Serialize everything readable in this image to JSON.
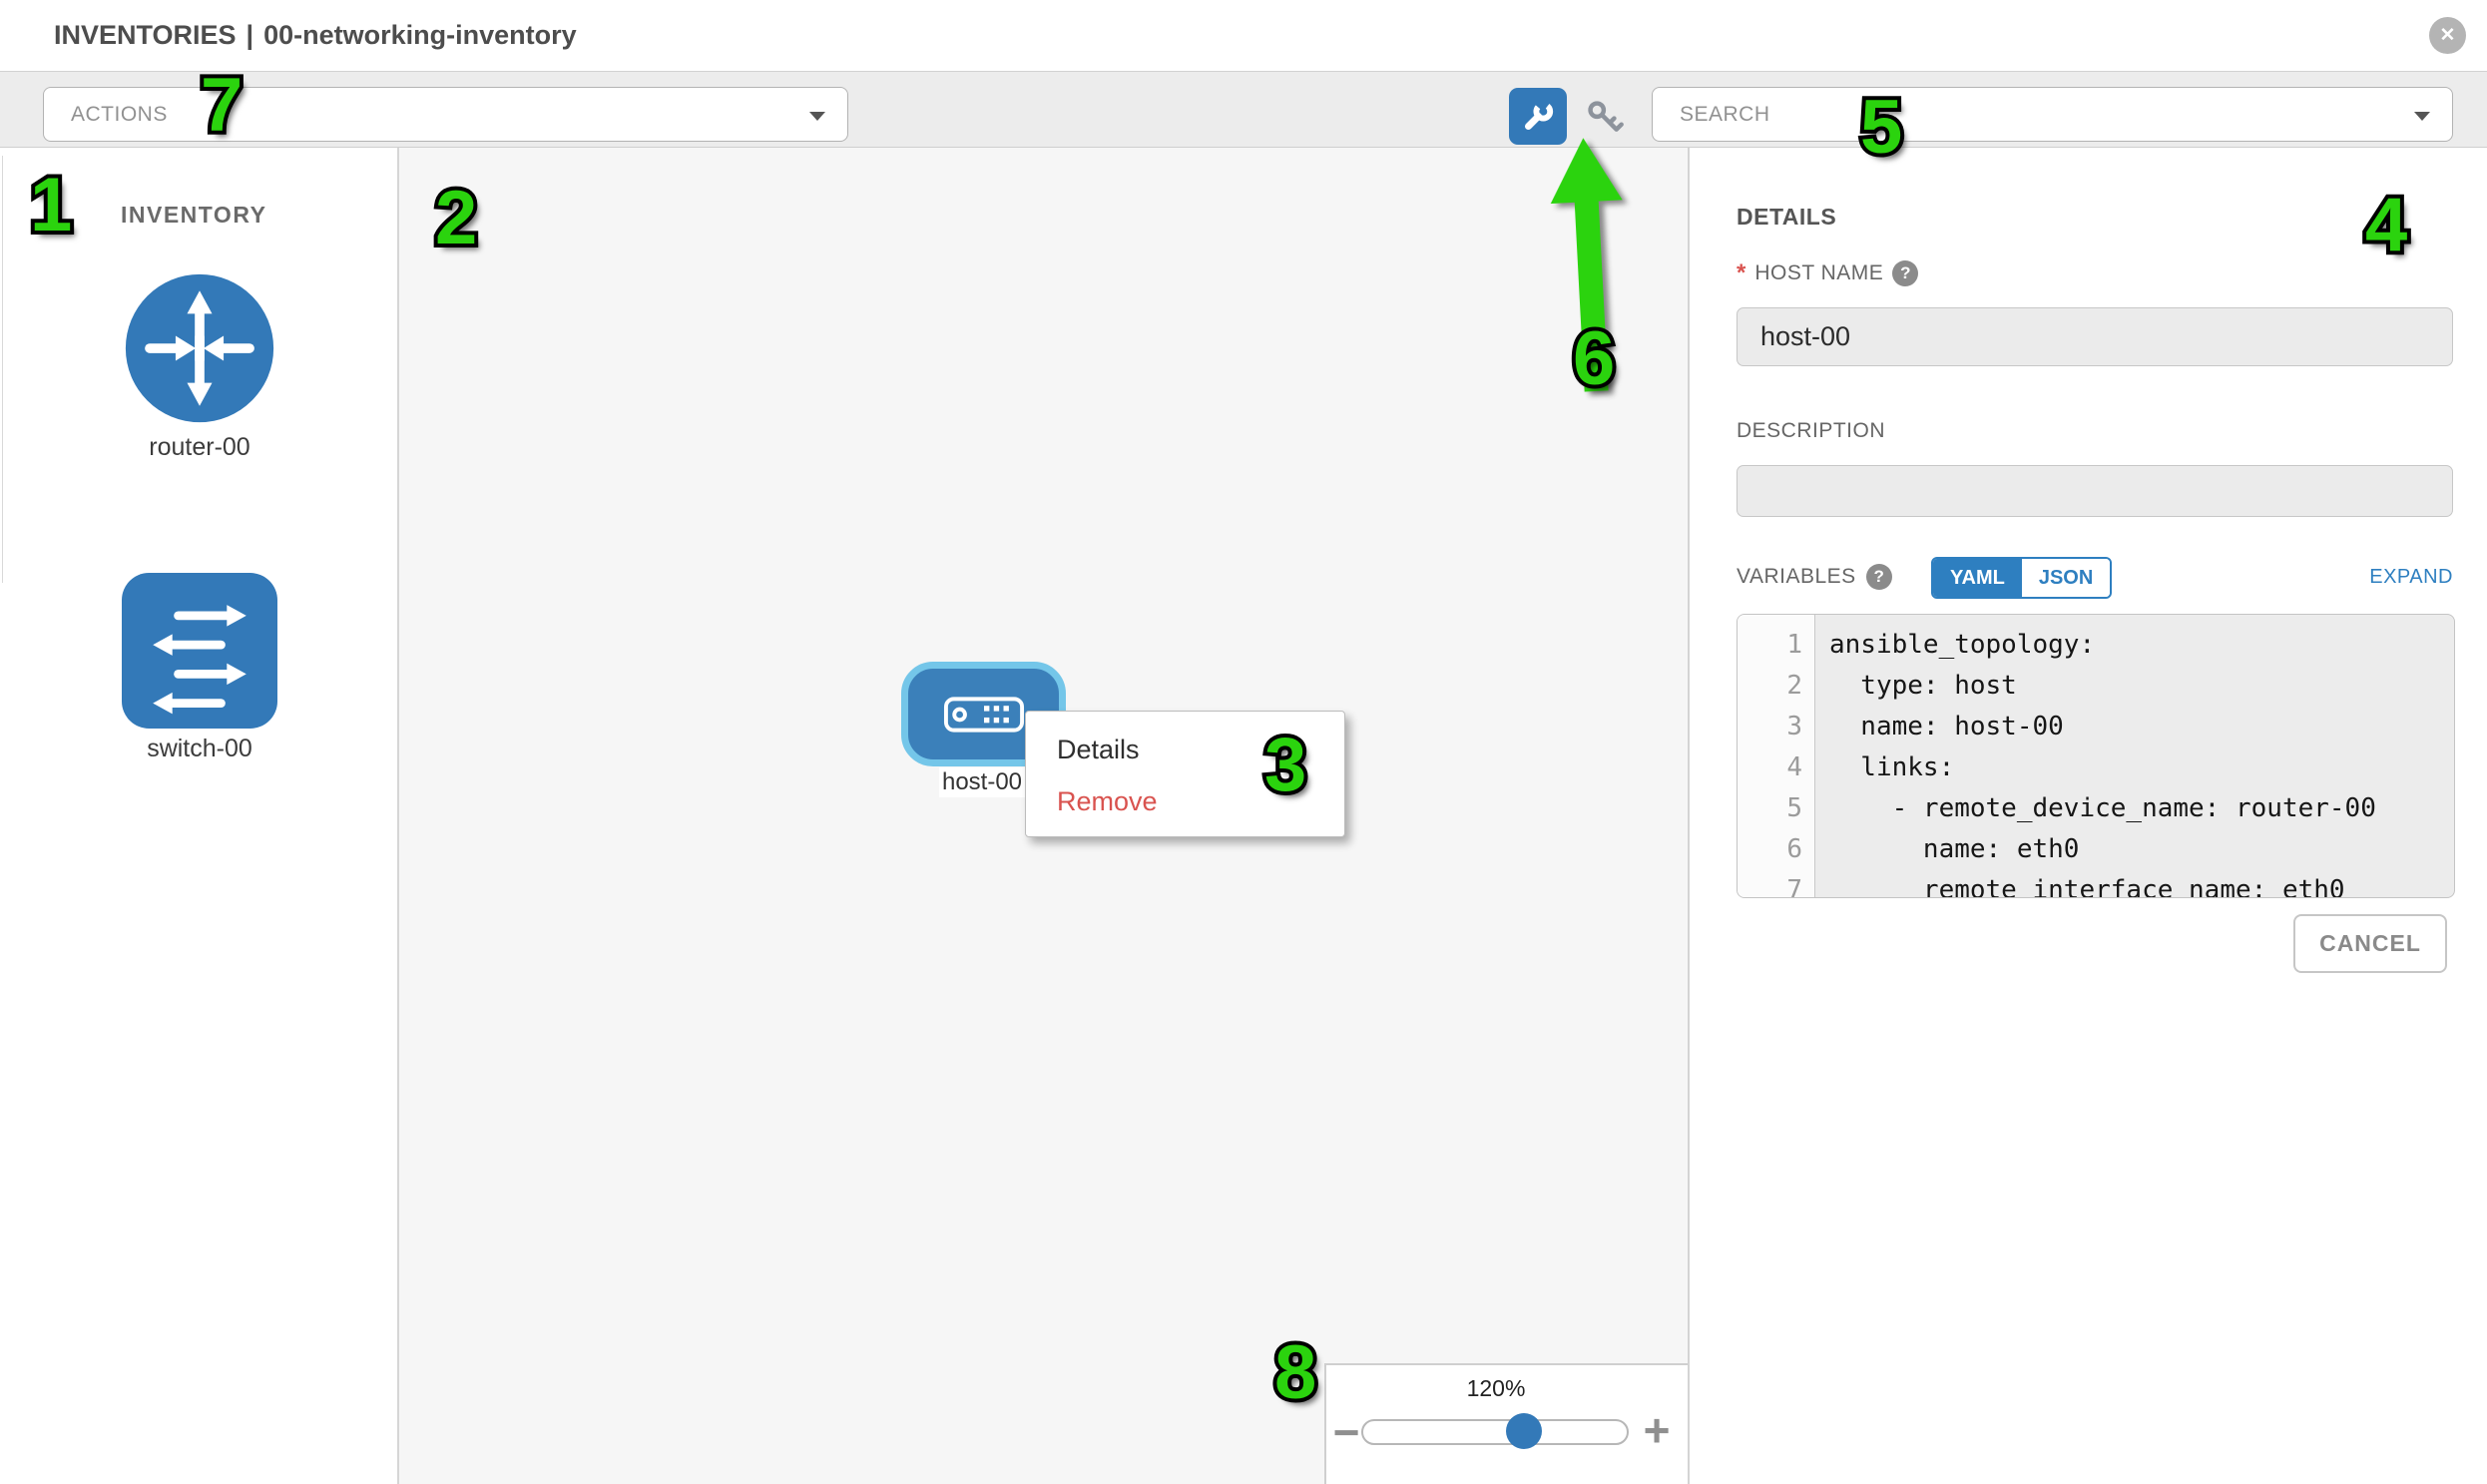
{
  "header": {
    "title_primary": "INVENTORIES",
    "title_separator": "|",
    "title_secondary": "00-networking-inventory",
    "close_glyph": "✕"
  },
  "toolbar": {
    "actions_placeholder": "ACTIONS",
    "search_placeholder": "SEARCH"
  },
  "sidebar": {
    "heading": "INVENTORY",
    "items": [
      {
        "label": "router-00",
        "type": "router"
      },
      {
        "label": "switch-00",
        "type": "switch"
      }
    ]
  },
  "canvas": {
    "node_label": "host-00",
    "context_menu": {
      "items": [
        {
          "label": "Details"
        },
        {
          "label": "Remove"
        }
      ]
    },
    "zoom_control": {
      "level": "120%",
      "minus_label": "−",
      "plus_label": "+"
    }
  },
  "details": {
    "heading": "DETAILS",
    "required_marker": "*",
    "help_glyph": "?",
    "host_name_label": "HOST NAME",
    "host_name_value": "host-00",
    "description_label": "DESCRIPTION",
    "description_value": "",
    "variables_label": "VARIABLES",
    "yaml_label": "YAML",
    "json_label": "JSON",
    "expand_label": "EXPAND",
    "cancel_label": "CANCEL",
    "code": {
      "lines": [
        {
          "num": "1",
          "text": "ansible_topology:"
        },
        {
          "num": "2",
          "text": "  type: host"
        },
        {
          "num": "3",
          "text": "  name: host-00"
        },
        {
          "num": "4",
          "text": "  links:"
        },
        {
          "num": "5",
          "text": "    - remote_device_name: router-00"
        },
        {
          "num": "6",
          "text": "      name: eth0"
        },
        {
          "num": "7",
          "text": "      remote_interface_name: eth0"
        }
      ]
    }
  },
  "annotations": {
    "digits": [
      "1",
      "2",
      "3",
      "4",
      "5",
      "6",
      "7",
      "8"
    ]
  },
  "colors": {
    "primary_blue": "#3379b8",
    "selection_blue": "#74c6e9",
    "annotation_green": "#2bd30e",
    "remove_red": "#d9534f",
    "link_blue": "#2e7fc0",
    "toolbar_gray": "#ececec",
    "canvas_gray": "#f6f6f6"
  }
}
